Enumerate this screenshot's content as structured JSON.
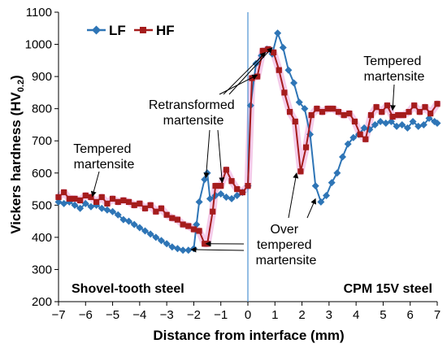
{
  "chart_data": {
    "type": "line",
    "xlabel": "Distance from interface (mm)",
    "ylabel": "Vickers hardness (HV",
    "ylabel_sub": "0.2",
    "ylabel_close": ")",
    "xlim": [
      -7,
      7
    ],
    "ylim": [
      200,
      1100
    ],
    "x_ticks": [
      -7,
      -6,
      -5,
      -4,
      -3,
      -2,
      -1,
      0,
      1,
      2,
      3,
      4,
      5,
      6,
      7
    ],
    "x_tick_labels": [
      "−7",
      "−6",
      "−5",
      "−4",
      "−3",
      "−2",
      "−1",
      "0",
      "1",
      "2",
      "3",
      "4",
      "5",
      "6",
      "7"
    ],
    "y_ticks": [
      200,
      300,
      400,
      500,
      600,
      700,
      800,
      900,
      1000,
      1100
    ],
    "grid": false,
    "legend_position": "top-left",
    "interface_line_x": 0,
    "series": [
      {
        "name": "LF",
        "color": "#2e75b6",
        "marker": "diamond",
        "x": [
          -7.0,
          -6.8,
          -6.6,
          -6.4,
          -6.2,
          -6.0,
          -5.8,
          -5.6,
          -5.4,
          -5.2,
          -5.0,
          -4.8,
          -4.6,
          -4.4,
          -4.2,
          -4.0,
          -3.8,
          -3.6,
          -3.4,
          -3.2,
          -3.0,
          -2.8,
          -2.6,
          -2.4,
          -2.2,
          -2.0,
          -1.9,
          -1.8,
          -1.6,
          -1.5,
          -1.4,
          -1.2,
          -1.0,
          -0.8,
          -0.6,
          -0.4,
          -0.2,
          0.0,
          0.1,
          0.3,
          0.5,
          0.7,
          0.9,
          1.1,
          1.3,
          1.5,
          1.7,
          1.9,
          2.1,
          2.3,
          2.5,
          2.7,
          2.9,
          3.1,
          3.3,
          3.5,
          3.7,
          3.9,
          4.1,
          4.3,
          4.5,
          4.7,
          4.9,
          5.1,
          5.3,
          5.5,
          5.7,
          5.9,
          6.1,
          6.3,
          6.5,
          6.7,
          6.9,
          7.0
        ],
        "y": [
          510,
          505,
          510,
          500,
          490,
          505,
          495,
          500,
          490,
          485,
          480,
          470,
          455,
          450,
          440,
          430,
          420,
          410,
          400,
          390,
          380,
          370,
          365,
          360,
          360,
          365,
          440,
          510,
          580,
          600,
          520,
          530,
          535,
          525,
          520,
          530,
          540,
          560,
          810,
          940,
          965,
          985,
          970,
          1035,
          990,
          920,
          880,
          820,
          800,
          720,
          560,
          510,
          530,
          570,
          600,
          650,
          690,
          710,
          720,
          740,
          735,
          750,
          760,
          755,
          760,
          745,
          750,
          740,
          760,
          745,
          750,
          770,
          760,
          755
        ]
      },
      {
        "name": "HF",
        "color": "#a51c1c",
        "marker": "square",
        "x": [
          -7.0,
          -6.8,
          -6.6,
          -6.4,
          -6.2,
          -6.0,
          -5.8,
          -5.6,
          -5.4,
          -5.2,
          -5.0,
          -4.8,
          -4.6,
          -4.4,
          -4.2,
          -4.0,
          -3.8,
          -3.6,
          -3.4,
          -3.2,
          -3.0,
          -2.8,
          -2.6,
          -2.4,
          -2.2,
          -2.0,
          -1.8,
          -1.6,
          -1.5,
          -1.3,
          -1.2,
          -1.0,
          -0.8,
          -0.6,
          -0.4,
          -0.2,
          0.0,
          0.15,
          0.35,
          0.55,
          0.75,
          0.95,
          1.15,
          1.35,
          1.55,
          1.75,
          1.95,
          2.15,
          2.35,
          2.55,
          2.75,
          2.95,
          3.15,
          3.35,
          3.55,
          3.75,
          3.95,
          4.15,
          4.35,
          4.55,
          4.75,
          4.95,
          5.15,
          5.35,
          5.55,
          5.75,
          5.95,
          6.15,
          6.35,
          6.55,
          6.75,
          7.0
        ],
        "y": [
          525,
          540,
          520,
          520,
          515,
          530,
          525,
          510,
          525,
          505,
          520,
          510,
          515,
          510,
          500,
          505,
          490,
          500,
          480,
          490,
          470,
          460,
          455,
          440,
          435,
          425,
          420,
          380,
          380,
          480,
          560,
          560,
          610,
          575,
          550,
          540,
          560,
          895,
          900,
          980,
          985,
          975,
          920,
          850,
          790,
          760,
          605,
          680,
          780,
          800,
          790,
          800,
          800,
          790,
          780,
          785,
          760,
          720,
          705,
          780,
          805,
          790,
          810,
          775,
          780,
          780,
          790,
          810,
          790,
          805,
          785,
          815
        ]
      }
    ],
    "annotations": [
      {
        "lines": [
          "Tempered",
          "martensite"
        ],
        "x_anchor": -5.8,
        "y_anchor": 525
      },
      {
        "lines": [
          "Retransformed",
          "martensite"
        ],
        "x_anchor": -1.5,
        "y_anchor": 600
      },
      {
        "lines": [
          "Over",
          "tempered",
          "martensite"
        ],
        "x_anchor": 1.8,
        "y_anchor": 610
      },
      {
        "lines": [
          "Tempered",
          "martensite"
        ],
        "x_anchor": 5.4,
        "y_anchor": 785
      }
    ],
    "region_labels": [
      "Shovel-tooth steel",
      "CPM 15V steel"
    ]
  }
}
